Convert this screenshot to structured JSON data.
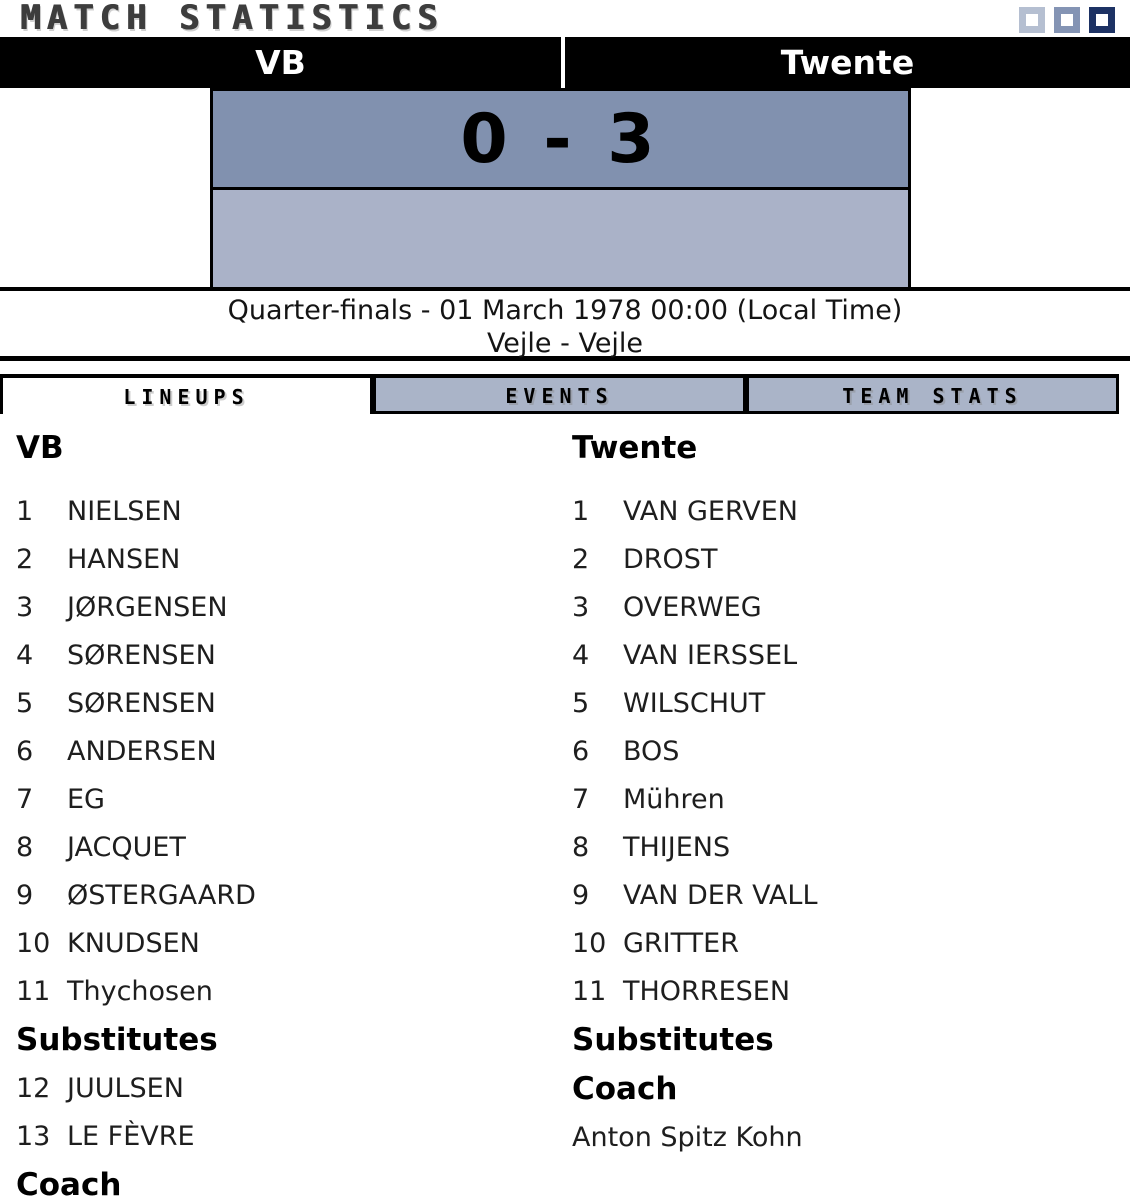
{
  "header": {
    "title": "MATCH STATISTICS",
    "home_team": "VB",
    "away_team": "Twente",
    "score": "0 - 3",
    "round_line": "Quarter-finals - 01 March 1978 00:00 (Local Time)",
    "venue_line": "Vejle - Vejle"
  },
  "tabs": [
    {
      "label": "LINEUPS",
      "active": true
    },
    {
      "label": "EVENTS",
      "active": false
    },
    {
      "label": "TEAM STATS",
      "active": false
    }
  ],
  "lineups": {
    "home": {
      "team": "VB",
      "players": [
        {
          "number": "1",
          "name": "NIELSEN"
        },
        {
          "number": "2",
          "name": "HANSEN"
        },
        {
          "number": "3",
          "name": "JØRGENSEN"
        },
        {
          "number": "4",
          "name": "SØRENSEN"
        },
        {
          "number": "5",
          "name": "SØRENSEN"
        },
        {
          "number": "6",
          "name": "ANDERSEN"
        },
        {
          "number": "7",
          "name": "EG"
        },
        {
          "number": "8",
          "name": "JACQUET"
        },
        {
          "number": "9",
          "name": "ØSTERGAARD"
        },
        {
          "number": "10",
          "name": "KNUDSEN"
        },
        {
          "number": "11",
          "name": "Thychosen"
        }
      ],
      "substitutes_label": "Substitutes",
      "substitutes": [
        {
          "number": "12",
          "name": "JUULSEN"
        },
        {
          "number": "13",
          "name": "LE FÈVRE"
        }
      ],
      "coach_label": "Coach"
    },
    "away": {
      "team": "Twente",
      "players": [
        {
          "number": "1",
          "name": "VAN GERVEN"
        },
        {
          "number": "2",
          "name": "DROST"
        },
        {
          "number": "3",
          "name": "OVERWEG"
        },
        {
          "number": "4",
          "name": "VAN IERSSEL"
        },
        {
          "number": "5",
          "name": "WILSCHUT"
        },
        {
          "number": "6",
          "name": "BOS"
        },
        {
          "number": "7",
          "name": "Mühren"
        },
        {
          "number": "8",
          "name": "THIJENS"
        },
        {
          "number": "9",
          "name": "VAN DER VALL"
        },
        {
          "number": "10",
          "name": "GRITTER"
        },
        {
          "number": "11",
          "name": "THORRESEN"
        }
      ],
      "substitutes_label": "Substitutes",
      "substitutes": [],
      "coach_label": "Coach",
      "coach": "Anton Spitz Kohn"
    }
  },
  "colors": {
    "square_light": "#b5bfd1",
    "square_medium": "#8494b4",
    "square_dark": "#1d3264",
    "score_top": "#8191af",
    "score_bottom": "#aab2c8",
    "tab_bg": "#aab4c8"
  }
}
